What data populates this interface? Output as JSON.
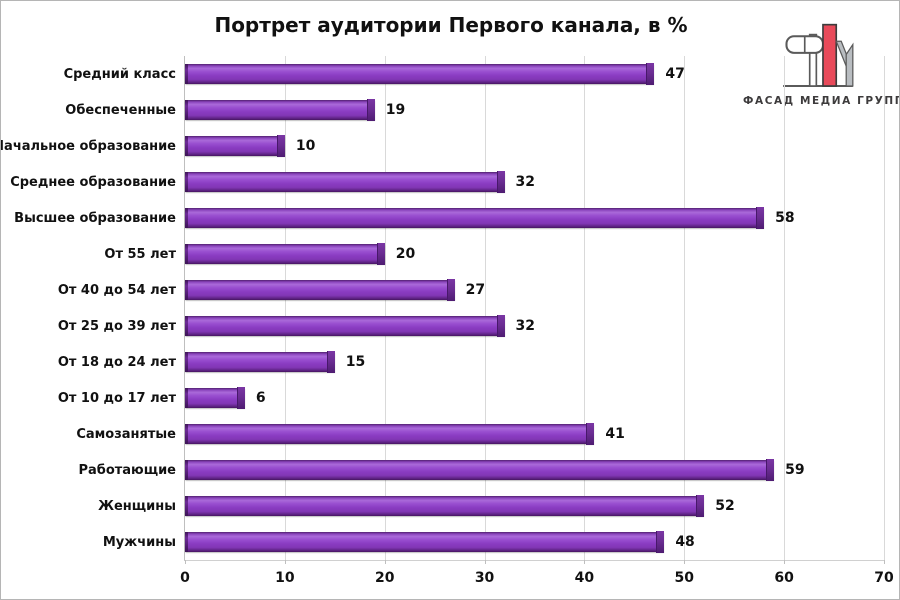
{
  "title": "Портрет аудитории Первого канала, в %",
  "logo": {
    "caption": "ФАСАД МЕДИА ГРУПП",
    "accent_red": "#e84a5a",
    "gray": "#b9bdc1",
    "outline": "#5a5a5a"
  },
  "chart_data": {
    "type": "bar",
    "orientation": "horizontal",
    "title": "Портрет аудитории Первого канала, в %",
    "categories": [
      "Средний класс",
      "Обеспеченные",
      "Начальное образование",
      "Среднее образование",
      "Высшее образование",
      "От 55 лет",
      "От 40 до 54 лет",
      "От 25 до 39 лет",
      "От 18 до 24 лет",
      "От 10 до 17 лет",
      "Самозанятые",
      "Работающие",
      "Женщины",
      "Мужчины"
    ],
    "values": [
      47,
      19,
      10,
      32,
      58,
      20,
      27,
      32,
      15,
      6,
      41,
      59,
      52,
      48
    ],
    "xlabel": "",
    "ylabel": "",
    "xlim": [
      0,
      70
    ],
    "xticks": [
      0,
      10,
      20,
      30,
      40,
      50,
      60,
      70
    ],
    "data_labels": true,
    "grid": "vertical",
    "bar_color": "#8b3fc3",
    "bar_highlight": "#aa6ad9",
    "bar_shadow": "#471560",
    "grid_color": "#d9d9d9",
    "legend": "none"
  }
}
